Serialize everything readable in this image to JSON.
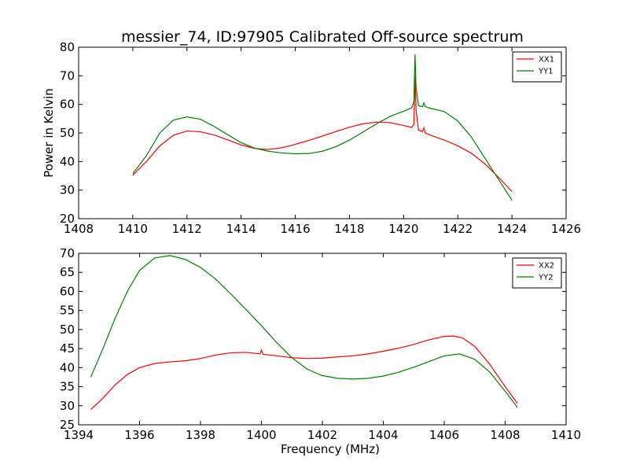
{
  "chart_data": [
    {
      "type": "line",
      "title": "messier_74, ID:97905 Calibrated Off-source spectrum",
      "xlabel": "",
      "ylabel": "Power in Kelvin",
      "xlim": [
        1408,
        1426
      ],
      "ylim": [
        20,
        80
      ],
      "xticks": [
        1408,
        1410,
        1412,
        1414,
        1416,
        1418,
        1420,
        1422,
        1424,
        1426
      ],
      "yticks": [
        20,
        30,
        40,
        50,
        60,
        70,
        80
      ],
      "legend_position": "top-right",
      "grid": false,
      "series": [
        {
          "name": "XX1",
          "color": "#ff0000",
          "x": [
            1410,
            1410.5,
            1411,
            1411.5,
            1412,
            1412.5,
            1413,
            1413.5,
            1414,
            1414.5,
            1415,
            1415.5,
            1416,
            1416.5,
            1417,
            1417.5,
            1418,
            1418.5,
            1419,
            1419.5,
            1420,
            1420.3,
            1420.38,
            1420.42,
            1420.46,
            1420.55,
            1420.7,
            1420.75,
            1420.8,
            1421,
            1421.5,
            1422,
            1422.5,
            1423,
            1423.5,
            1424
          ],
          "y": [
            35.2,
            40,
            45.5,
            49.2,
            50.7,
            50.4,
            49.3,
            47.6,
            45.8,
            44.6,
            44.2,
            44.8,
            46,
            47.4,
            48.9,
            50.5,
            52,
            53.2,
            53.8,
            53.6,
            52.6,
            51.9,
            53,
            70,
            58,
            51,
            50.5,
            51.8,
            50,
            49.2,
            47.5,
            45.5,
            42.9,
            39.2,
            34.5,
            29.5
          ]
        },
        {
          "name": "YY1",
          "color": "#008000",
          "x": [
            1410,
            1410.5,
            1411,
            1411.5,
            1412,
            1412.5,
            1413,
            1413.5,
            1414,
            1414.5,
            1415,
            1415.5,
            1416,
            1416.5,
            1417,
            1417.5,
            1418,
            1418.5,
            1419,
            1419.5,
            1420,
            1420.3,
            1420.38,
            1420.42,
            1420.46,
            1420.55,
            1420.7,
            1420.75,
            1420.8,
            1421,
            1421.5,
            1422,
            1422.5,
            1423,
            1423.5,
            1424
          ],
          "y": [
            35.8,
            42,
            50,
            54.5,
            55.6,
            54.8,
            52.3,
            49.4,
            46.6,
            44.7,
            43.6,
            43,
            42.7,
            42.8,
            43.6,
            45.2,
            47.5,
            50.3,
            53.2,
            55.8,
            57.6,
            58.8,
            61,
            77.5,
            66,
            59.5,
            59.2,
            60.5,
            59.2,
            58.6,
            57.5,
            54.2,
            48.6,
            41.2,
            33.8,
            26.5
          ]
        }
      ]
    },
    {
      "type": "line",
      "title": "",
      "xlabel": "Frequency (MHz)",
      "ylabel": "",
      "xlim": [
        1394,
        1410
      ],
      "ylim": [
        25,
        70
      ],
      "xticks": [
        1394,
        1396,
        1398,
        1400,
        1402,
        1404,
        1406,
        1408,
        1410
      ],
      "yticks": [
        25,
        30,
        35,
        40,
        45,
        50,
        55,
        60,
        65,
        70
      ],
      "legend_position": "top-right",
      "grid": false,
      "series": [
        {
          "name": "XX2",
          "color": "#ff0000",
          "x": [
            1394.4,
            1394.8,
            1395.2,
            1395.6,
            1396,
            1396.5,
            1397,
            1397.5,
            1398,
            1398.5,
            1399,
            1399.5,
            1399.95,
            1400,
            1400.05,
            1400.5,
            1401,
            1401.5,
            1402,
            1402.5,
            1403,
            1403.5,
            1404,
            1404.5,
            1405,
            1405.5,
            1406,
            1406.3,
            1406.6,
            1407,
            1407.5,
            1408,
            1408.4
          ],
          "y": [
            29,
            32,
            35.5,
            38.2,
            40,
            41.1,
            41.5,
            41.8,
            42.4,
            43.3,
            43.9,
            44,
            43.6,
            44.6,
            43.5,
            43.1,
            42.6,
            42.4,
            42.5,
            42.8,
            43.1,
            43.6,
            44.3,
            45.1,
            46.1,
            47.3,
            48.2,
            48.3,
            47.8,
            45.6,
            40.8,
            35,
            30.6
          ]
        },
        {
          "name": "YY2",
          "color": "#008000",
          "x": [
            1394.4,
            1394.8,
            1395.2,
            1395.6,
            1396,
            1396.5,
            1397,
            1397.5,
            1398,
            1398.5,
            1399,
            1399.5,
            1400,
            1400.5,
            1401,
            1401.5,
            1402,
            1402.5,
            1403,
            1403.5,
            1404,
            1404.5,
            1405,
            1405.5,
            1406,
            1406.5,
            1407,
            1407.5,
            1408,
            1408.4
          ],
          "y": [
            37.5,
            45,
            53,
            60,
            65.5,
            68.8,
            69.4,
            68.4,
            66.3,
            63.2,
            59.3,
            55.2,
            51,
            46.6,
            42.6,
            39.6,
            37.9,
            37.2,
            37,
            37.2,
            37.8,
            38.8,
            40.1,
            41.6,
            43.1,
            43.6,
            42.2,
            38.8,
            33.8,
            29.6
          ]
        }
      ]
    }
  ]
}
